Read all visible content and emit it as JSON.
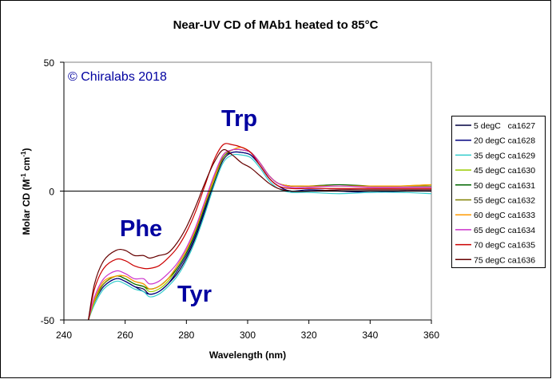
{
  "chart_data": {
    "type": "line",
    "title": "Near-UV CD of MAb1 heated to 85°C",
    "xlabel": "Wavelength (nm)",
    "ylabel": {
      "base": "Molar CD (M",
      "sup1": "-1",
      "mid": " cm",
      "sup2": "-1",
      "end": ")"
    },
    "xlim": [
      240,
      360
    ],
    "ylim": [
      -50,
      50
    ],
    "xticks": [
      240,
      260,
      280,
      300,
      320,
      340,
      360
    ],
    "yticks": [
      -50,
      0,
      50
    ],
    "grid": false,
    "legend_position": "right",
    "annotations": {
      "copyright": "© Chiralabs 2018",
      "trp": "Trp",
      "phe": "Phe",
      "tyr": "Tyr"
    },
    "x": [
      248,
      250,
      253,
      257,
      260,
      263,
      266,
      268,
      271,
      274,
      277,
      280,
      283,
      286,
      289,
      292,
      295,
      298,
      301,
      304,
      307,
      310,
      314,
      320,
      330,
      340,
      350,
      360
    ],
    "series": [
      {
        "name": "5 degC   ca1627",
        "color": "#000040",
        "values": [
          -50,
          -43,
          -37,
          -34,
          -35,
          -37,
          -38,
          -40,
          -39,
          -36,
          -32,
          -26,
          -18,
          -8,
          3,
          12,
          15,
          15,
          14,
          10,
          5,
          2,
          0,
          0,
          0,
          0,
          0,
          0
        ]
      },
      {
        "name": "20 degC ca1628",
        "color": "#000080",
        "values": [
          -50,
          -43,
          -37,
          -34,
          -35,
          -37,
          -39,
          -40,
          -39,
          -36,
          -31,
          -25,
          -17,
          -7,
          4,
          13,
          15,
          15,
          14,
          10,
          5,
          2,
          0,
          0.5,
          0,
          -0.5,
          0,
          0
        ]
      },
      {
        "name": "35 degC ca1629",
        "color": "#33CCCC",
        "values": [
          -50,
          -44,
          -38,
          -35,
          -36,
          -38,
          -39,
          -41,
          -40,
          -37,
          -33,
          -27,
          -19,
          -9,
          2,
          11,
          14,
          14,
          13,
          9,
          4,
          1,
          -0.5,
          -0.5,
          -1,
          -0.5,
          -0.5,
          -1
        ]
      },
      {
        "name": "45 degC ca1630",
        "color": "#99CC00",
        "values": [
          -50,
          -43,
          -36,
          -33,
          -34,
          -36,
          -37,
          -39,
          -38,
          -35,
          -30,
          -24,
          -16,
          -6,
          4,
          13,
          16,
          16,
          15,
          11,
          6,
          3,
          2,
          2,
          2,
          2,
          2,
          2.5
        ]
      },
      {
        "name": "50 degC ca1631",
        "color": "#006600",
        "values": [
          -50,
          -42,
          -36,
          -33,
          -34,
          -36,
          -37,
          -38,
          -37,
          -34,
          -30,
          -24,
          -16,
          -6,
          5,
          13,
          16,
          16,
          15,
          11,
          6,
          3,
          2,
          2,
          2.5,
          2,
          2,
          2
        ]
      },
      {
        "name": "55 degC ca1632",
        "color": "#808000",
        "values": [
          -50,
          -42,
          -36,
          -33,
          -33,
          -35,
          -36,
          -38,
          -37,
          -34,
          -29,
          -23,
          -15,
          -5,
          5,
          13,
          16,
          16,
          15,
          11,
          6,
          3,
          2,
          2,
          2,
          2,
          2,
          2
        ]
      },
      {
        "name": "60 degC ca1633",
        "color": "#FF9900",
        "values": [
          -50,
          -42,
          -35,
          -33,
          -33,
          -35,
          -36,
          -38,
          -37,
          -34,
          -29,
          -23,
          -15,
          -5,
          5,
          14,
          16,
          17,
          15,
          11,
          6,
          3,
          2,
          2,
          2,
          2,
          2,
          2.5
        ]
      },
      {
        "name": "65 degC ca1634",
        "color": "#CC33CC",
        "values": [
          -50,
          -41,
          -34,
          -31,
          -32,
          -34,
          -34,
          -36,
          -35,
          -32,
          -28,
          -22,
          -14,
          -4,
          6,
          14,
          16,
          16,
          15,
          11,
          6,
          3,
          1.5,
          1.5,
          2,
          1.5,
          1.5,
          1.5
        ]
      },
      {
        "name": "70 degC ca1635",
        "color": "#CC0000",
        "values": [
          -50,
          -38,
          -30,
          -26.5,
          -27,
          -29,
          -30,
          -30,
          -29,
          -26,
          -22,
          -16,
          -8,
          2,
          12,
          18,
          18,
          17,
          15,
          10,
          5,
          2,
          1,
          1,
          1,
          1,
          1,
          1
        ]
      },
      {
        "name": "75 degC ca1636",
        "color": "#660000",
        "values": [
          -50,
          -36,
          -27,
          -23,
          -23,
          -25,
          -25,
          -26,
          -25,
          -24,
          -20,
          -14,
          -6,
          3,
          11,
          16,
          14,
          11,
          9,
          6,
          3,
          1,
          0,
          0,
          0.5,
          0.5,
          0.5,
          0.5
        ]
      }
    ]
  }
}
